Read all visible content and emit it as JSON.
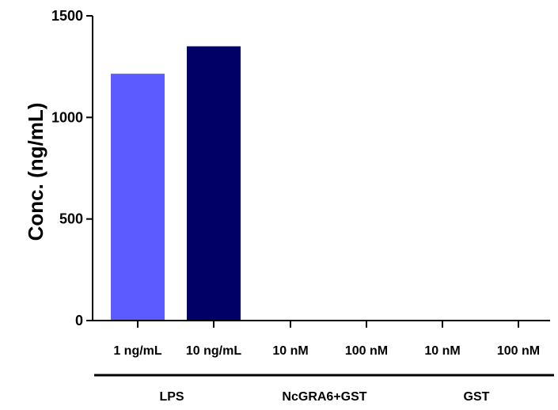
{
  "chart_data": {
    "type": "bar",
    "ylabel": "Conc. (ng/mL)",
    "xlabel": "",
    "ylim": [
      0,
      1500
    ],
    "yticks": [
      0,
      500,
      1000,
      1500
    ],
    "grid": false,
    "categories": [
      "1 ng/mL",
      "10 ng/mL",
      "10 nM",
      "100 nM",
      "10 nM",
      "100 nM"
    ],
    "values": [
      1215,
      1350,
      0,
      0,
      0,
      0
    ],
    "bar_colors": [
      "#5b5bff",
      "#000066",
      "#000000",
      "#000000",
      "#000000",
      "#000000"
    ],
    "groups": [
      {
        "label": "LPS",
        "categories": [
          0,
          1
        ]
      },
      {
        "label": "NcGRA6+GST",
        "categories": [
          2,
          3
        ]
      },
      {
        "label": "GST",
        "categories": [
          4,
          5
        ]
      }
    ]
  }
}
